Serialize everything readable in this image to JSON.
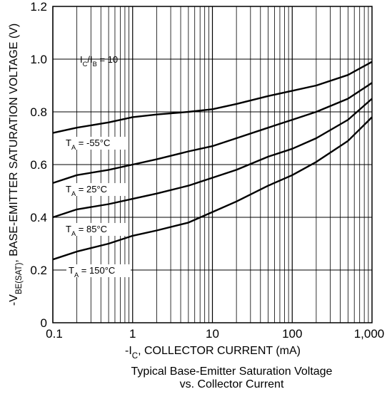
{
  "chart_data": {
    "type": "line",
    "title": "",
    "caption": [
      "Typical Base-Emitter Saturation Voltage",
      "vs. Collector Current"
    ],
    "xlabel": "-I_C, COLLECTOR CURRENT (mA)",
    "ylabel": "-V_BE(SAT), BASE-EMITTER SATURATION VOLTAGE (V)",
    "xscale": "log",
    "xlim": [
      0.1,
      1000
    ],
    "ylim": [
      0,
      1.2
    ],
    "grid": true,
    "x_ticks": [
      "0.1",
      "1",
      "10",
      "100",
      "1,000"
    ],
    "y_ticks": [
      "0",
      "0.2",
      "0.4",
      "0.6",
      "0.8",
      "1.0",
      "1.2"
    ],
    "y_tick_values": [
      0,
      0.2,
      0.4,
      0.6,
      0.8,
      1.0,
      1.2
    ],
    "condition": "I_C/I_B = 10",
    "x": [
      0.1,
      0.2,
      0.5,
      1,
      2,
      5,
      10,
      20,
      50,
      100,
      200,
      500,
      1000
    ],
    "series": [
      {
        "name": "T_A = -55°C",
        "values": [
          0.72,
          0.74,
          0.76,
          0.78,
          0.79,
          0.8,
          0.81,
          0.83,
          0.86,
          0.88,
          0.9,
          0.94,
          0.99
        ]
      },
      {
        "name": "T_A = 25°C",
        "values": [
          0.53,
          0.56,
          0.58,
          0.6,
          0.62,
          0.65,
          0.67,
          0.7,
          0.74,
          0.77,
          0.8,
          0.85,
          0.91
        ]
      },
      {
        "name": "T_A = 85°C",
        "values": [
          0.4,
          0.43,
          0.45,
          0.47,
          0.49,
          0.52,
          0.55,
          0.58,
          0.63,
          0.66,
          0.7,
          0.77,
          0.85
        ]
      },
      {
        "name": "T_A = 150°C",
        "values": [
          0.24,
          0.27,
          0.3,
          0.33,
          0.35,
          0.38,
          0.42,
          0.46,
          0.52,
          0.56,
          0.61,
          0.69,
          0.78
        ]
      }
    ]
  }
}
